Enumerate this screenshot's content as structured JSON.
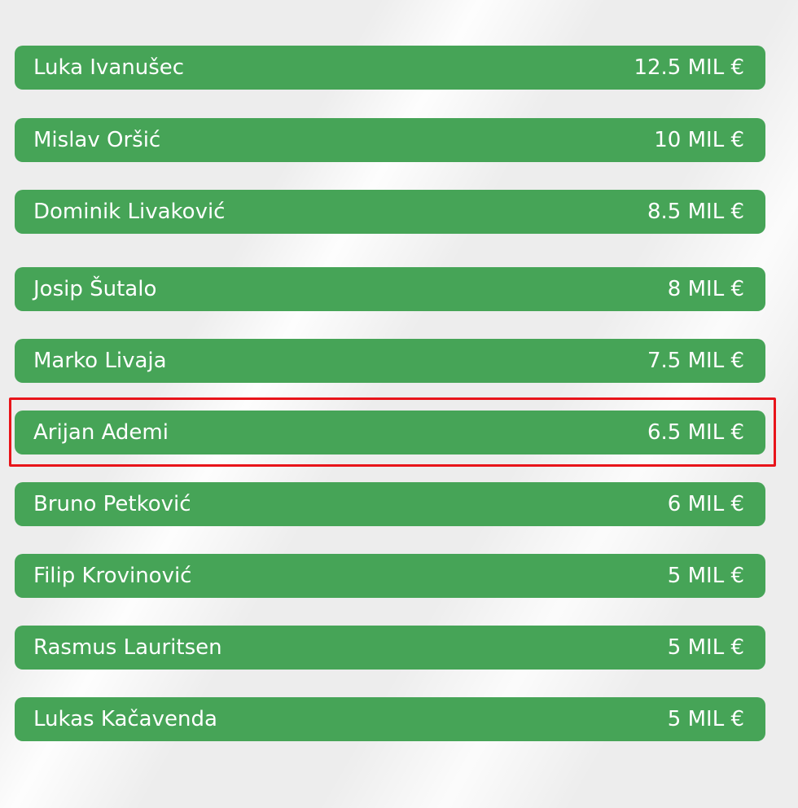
{
  "players": [
    {
      "name": "Luka Ivanušec",
      "value": "12.5 MIL €"
    },
    {
      "name": "Mislav Oršić",
      "value": "10 MIL €"
    },
    {
      "name": "Dominik Livaković",
      "value": "8.5 MIL €"
    },
    {
      "name": "Josip Šutalo",
      "value": "8 MIL €"
    },
    {
      "name": "Marko Livaja",
      "value": "7.5 MIL €"
    },
    {
      "name": "Arijan Ademi",
      "value": "6.5 MIL €"
    },
    {
      "name": "Bruno Petković",
      "value": "6 MIL €"
    },
    {
      "name": "Filip Krovinović",
      "value": "5 MIL €"
    },
    {
      "name": "Rasmus Lauritsen",
      "value": "5 MIL €"
    },
    {
      "name": "Lukas Kačavenda",
      "value": "5 MIL €"
    }
  ]
}
